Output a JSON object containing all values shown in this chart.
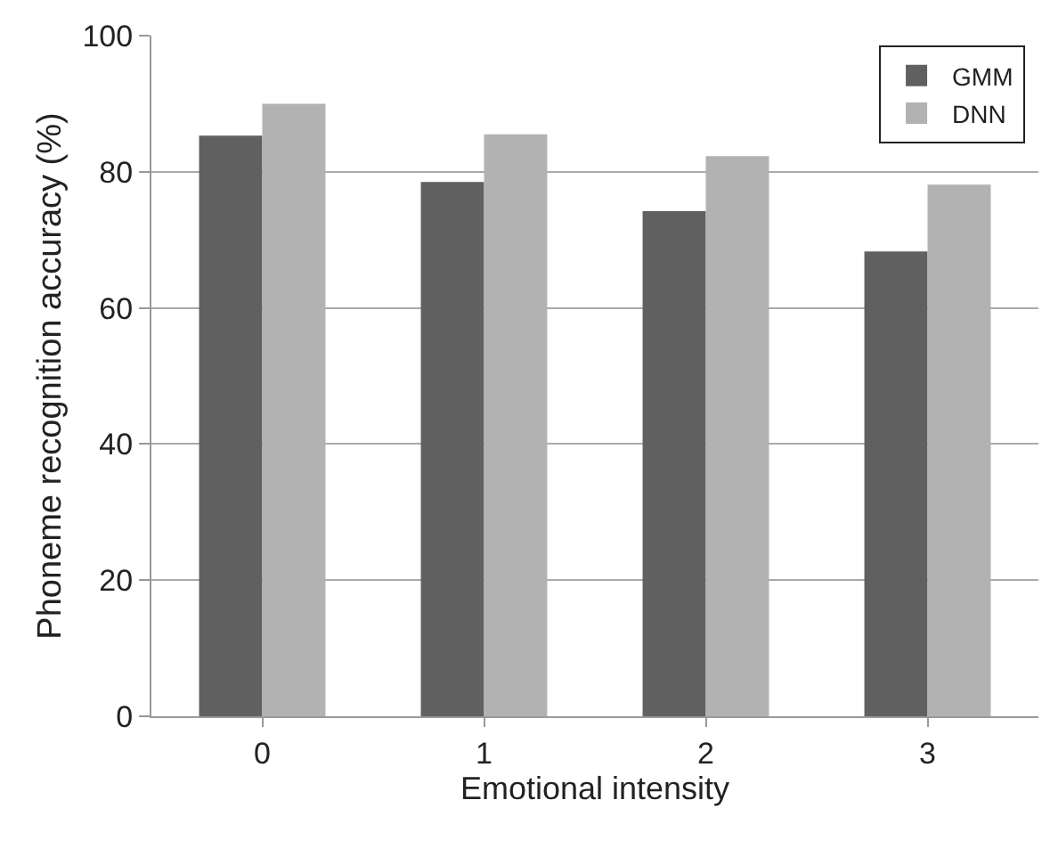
{
  "chart_data": {
    "type": "bar",
    "xlabel": "Emotional intensity",
    "ylabel": "Phoneme recognition accuracy (%)",
    "categories": [
      "0",
      "1",
      "2",
      "3"
    ],
    "series": [
      {
        "name": "GMM",
        "color": "#606060",
        "values": [
          85.3,
          78.5,
          74.2,
          68.3
        ]
      },
      {
        "name": "DNN",
        "color": "#b2b2b2",
        "values": [
          90.0,
          85.5,
          82.3,
          78.1
        ]
      }
    ],
    "ylim": [
      0,
      100
    ],
    "yticks": [
      0,
      20,
      40,
      60,
      80,
      100
    ],
    "grid": "y",
    "legend": "top right"
  }
}
